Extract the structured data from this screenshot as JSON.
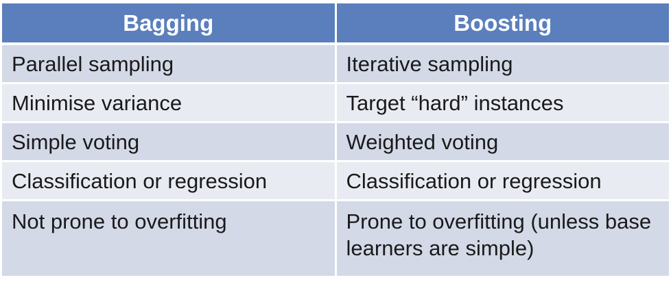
{
  "table": {
    "headers": [
      "Bagging",
      "Boosting"
    ],
    "rows": [
      [
        "Parallel sampling",
        "Iterative sampling"
      ],
      [
        "Minimise variance",
        "Target “hard” instances"
      ],
      [
        "Simple voting",
        "Weighted voting"
      ],
      [
        "Classification or regression",
        "Classification or regression"
      ],
      [
        "Not prone to overfitting",
        "Prone to overfitting (unless base learners are simple)"
      ]
    ]
  },
  "colors": {
    "header_bg": "#5b7fbc",
    "header_text": "#ffffff",
    "row_bg": "#d3d9e7",
    "row_alt_bg": "#e8ebf2",
    "cell_text": "#1a1a1a"
  }
}
